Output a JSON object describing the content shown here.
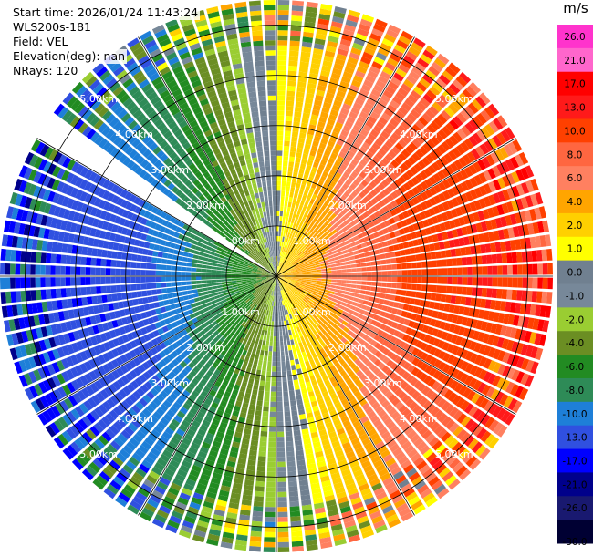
{
  "info": {
    "start_time": "Start time: 2026/01/24 11:43:24",
    "station": "WLS200s-181",
    "field": "Field: VEL",
    "elevation": "Elevation(deg): nan",
    "nrays": "NRays: 120"
  },
  "colorbar": {
    "unit": "m/s",
    "ticks": [
      "26.0",
      "21.0",
      "17.0",
      "13.0",
      "10.0",
      "8.0",
      "6.0",
      "4.0",
      "2.0",
      "1.0",
      "0.0",
      "-1.0",
      "-2.0",
      "-4.0",
      "-6.0",
      "-8.0",
      "-10.0",
      "-13.0",
      "-17.0",
      "-21.0",
      "-26.0",
      "-30.0"
    ],
    "colors": [
      "#ff33cc",
      "#ff66cc",
      "#ff0000",
      "#ff1a1a",
      "#ff4000",
      "#ff6640",
      "#ff8060",
      "#ffa500",
      "#ffd000",
      "#ffff00",
      "#708090",
      "#778899",
      "#9acd32",
      "#6b8e23",
      "#228b22",
      "#2e8b57",
      "#1e7fd8",
      "#3050e0",
      "#0000ff",
      "#00008b",
      "#191970",
      "#000033"
    ]
  },
  "chart_data": {
    "type": "polar-ppi",
    "field": "VEL",
    "unit": "m/s",
    "nrays": 120,
    "range_rings_km": [
      1.0,
      2.0,
      3.0,
      4.0,
      5.0
    ],
    "ring_labels": [
      "1.00km",
      "2.00km",
      "3.00km",
      "4.00km",
      "5.00km"
    ],
    "max_range_km": 5.5,
    "gate_spacing_km": 0.1,
    "missing_sector_az_deg": [
      300,
      306
    ],
    "color_levels": [
      -30.0,
      -26.0,
      -21.0,
      -17.0,
      -13.0,
      -10.0,
      -8.0,
      -6.0,
      -4.0,
      -2.0,
      -1.0,
      0.0,
      1.0,
      2.0,
      4.0,
      6.0,
      8.0,
      10.0,
      13.0,
      17.0,
      21.0,
      26.0
    ],
    "velocity_pattern": {
      "positive_toward_az_deg": 85,
      "negative_toward_az_deg": 265,
      "max_abs_m_s": 13
    }
  }
}
